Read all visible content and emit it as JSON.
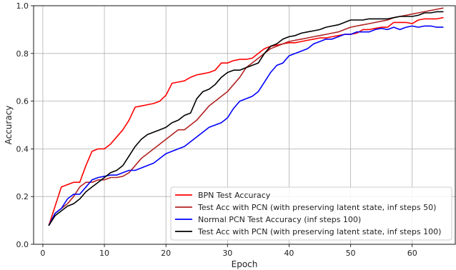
{
  "chart_data": {
    "type": "line",
    "xlabel": "Epoch",
    "ylabel": "Accuracy",
    "xlim": [
      -1.5,
      67
    ],
    "ylim": [
      0.0,
      1.0
    ],
    "xticks": [
      0,
      10,
      20,
      30,
      40,
      50,
      60
    ],
    "yticks": [
      0.0,
      0.2,
      0.4,
      0.6,
      0.8,
      1.0
    ],
    "xtick_labels": [
      "0",
      "10",
      "20",
      "30",
      "40",
      "50",
      "60"
    ],
    "ytick_labels": [
      "0.0",
      "0.2",
      "0.4",
      "0.6",
      "0.8",
      "1.0"
    ],
    "grid": true,
    "legend_position": "bottom-right",
    "series": [
      {
        "name": "BPN Test Accuracy",
        "color": "#ff0000",
        "x": [
          1,
          2,
          3,
          4,
          5,
          6,
          7,
          8,
          9,
          10,
          11,
          12,
          13,
          14,
          15,
          16,
          17,
          18,
          19,
          20,
          21,
          22,
          23,
          24,
          25,
          26,
          27,
          28,
          29,
          30,
          31,
          32,
          33,
          34,
          35,
          36,
          37,
          38,
          39,
          40,
          41,
          42,
          43,
          44,
          45,
          46,
          47,
          48,
          49,
          50,
          51,
          52,
          53,
          54,
          55,
          56,
          57,
          58,
          59,
          60,
          61,
          62,
          63,
          64,
          65
        ],
        "y": [
          0.08,
          0.16,
          0.24,
          0.25,
          0.26,
          0.26,
          0.33,
          0.39,
          0.4,
          0.4,
          0.42,
          0.45,
          0.48,
          0.52,
          0.575,
          0.58,
          0.585,
          0.59,
          0.6,
          0.625,
          0.675,
          0.68,
          0.685,
          0.7,
          0.71,
          0.715,
          0.72,
          0.73,
          0.76,
          0.76,
          0.77,
          0.775,
          0.775,
          0.78,
          0.8,
          0.82,
          0.83,
          0.835,
          0.84,
          0.845,
          0.845,
          0.85,
          0.855,
          0.86,
          0.865,
          0.865,
          0.87,
          0.875,
          0.88,
          0.88,
          0.885,
          0.9,
          0.9,
          0.905,
          0.91,
          0.91,
          0.93,
          0.93,
          0.93,
          0.925,
          0.94,
          0.945,
          0.945,
          0.945,
          0.95
        ]
      },
      {
        "name": "Test Acc with PCN (with preserving latent state, inf steps 50)",
        "color": "#b22222",
        "x": [
          1,
          2,
          3,
          4,
          5,
          6,
          7,
          8,
          9,
          10,
          11,
          12,
          13,
          14,
          15,
          16,
          17,
          18,
          19,
          20,
          21,
          22,
          23,
          24,
          25,
          26,
          27,
          28,
          29,
          30,
          31,
          32,
          33,
          34,
          35,
          36,
          37,
          38,
          39,
          40,
          41,
          42,
          43,
          44,
          45,
          46,
          47,
          48,
          49,
          50,
          51,
          52,
          53,
          54,
          55,
          56,
          57,
          58,
          59,
          60,
          61,
          62,
          63,
          64,
          65
        ],
        "y": [
          0.08,
          0.13,
          0.15,
          0.17,
          0.2,
          0.24,
          0.26,
          0.26,
          0.27,
          0.27,
          0.28,
          0.28,
          0.285,
          0.3,
          0.33,
          0.36,
          0.38,
          0.4,
          0.42,
          0.44,
          0.46,
          0.48,
          0.48,
          0.5,
          0.52,
          0.55,
          0.58,
          0.6,
          0.62,
          0.64,
          0.67,
          0.7,
          0.74,
          0.76,
          0.78,
          0.8,
          0.82,
          0.83,
          0.84,
          0.85,
          0.855,
          0.86,
          0.865,
          0.87,
          0.875,
          0.88,
          0.885,
          0.89,
          0.9,
          0.91,
          0.915,
          0.92,
          0.925,
          0.93,
          0.935,
          0.94,
          0.95,
          0.955,
          0.96,
          0.965,
          0.97,
          0.975,
          0.98,
          0.985,
          0.99
        ]
      },
      {
        "name": "Normal PCN Test Accuracy (inf steps 100)",
        "color": "#0000ff",
        "x": [
          1,
          2,
          3,
          4,
          5,
          6,
          7,
          8,
          9,
          10,
          11,
          12,
          13,
          14,
          15,
          16,
          17,
          18,
          19,
          20,
          21,
          22,
          23,
          24,
          25,
          26,
          27,
          28,
          29,
          30,
          31,
          32,
          33,
          34,
          35,
          36,
          37,
          38,
          39,
          40,
          41,
          42,
          43,
          44,
          45,
          46,
          47,
          48,
          49,
          50,
          51,
          52,
          53,
          54,
          55,
          56,
          57,
          58,
          59,
          60,
          61,
          62,
          63,
          64,
          65
        ],
        "y": [
          0.08,
          0.13,
          0.15,
          0.19,
          0.21,
          0.21,
          0.24,
          0.27,
          0.28,
          0.285,
          0.29,
          0.29,
          0.3,
          0.31,
          0.31,
          0.32,
          0.33,
          0.34,
          0.36,
          0.38,
          0.39,
          0.4,
          0.41,
          0.43,
          0.45,
          0.47,
          0.49,
          0.5,
          0.51,
          0.53,
          0.57,
          0.6,
          0.61,
          0.62,
          0.64,
          0.68,
          0.72,
          0.75,
          0.76,
          0.79,
          0.8,
          0.81,
          0.82,
          0.84,
          0.85,
          0.86,
          0.86,
          0.87,
          0.88,
          0.88,
          0.89,
          0.89,
          0.89,
          0.9,
          0.905,
          0.9,
          0.91,
          0.9,
          0.91,
          0.915,
          0.91,
          0.915,
          0.915,
          0.91,
          0.91
        ]
      },
      {
        "name": "Test Acc with PCN (with preserving latent state, inf steps 100)",
        "color": "#000000",
        "x": [
          1,
          2,
          3,
          4,
          5,
          6,
          7,
          8,
          9,
          10,
          11,
          12,
          13,
          14,
          15,
          16,
          17,
          18,
          19,
          20,
          21,
          22,
          23,
          24,
          25,
          26,
          27,
          28,
          29,
          30,
          31,
          32,
          33,
          34,
          35,
          36,
          37,
          38,
          39,
          40,
          41,
          42,
          43,
          44,
          45,
          46,
          47,
          48,
          49,
          50,
          51,
          52,
          53,
          54,
          55,
          56,
          57,
          58,
          59,
          60,
          61,
          62,
          63,
          64,
          65
        ],
        "y": [
          0.08,
          0.12,
          0.14,
          0.16,
          0.17,
          0.19,
          0.22,
          0.24,
          0.26,
          0.28,
          0.3,
          0.31,
          0.33,
          0.37,
          0.41,
          0.44,
          0.46,
          0.47,
          0.48,
          0.49,
          0.51,
          0.52,
          0.54,
          0.55,
          0.61,
          0.64,
          0.65,
          0.67,
          0.7,
          0.72,
          0.73,
          0.73,
          0.74,
          0.75,
          0.76,
          0.8,
          0.83,
          0.84,
          0.86,
          0.87,
          0.875,
          0.885,
          0.89,
          0.895,
          0.9,
          0.91,
          0.915,
          0.92,
          0.93,
          0.94,
          0.94,
          0.94,
          0.945,
          0.945,
          0.945,
          0.945,
          0.95,
          0.955,
          0.955,
          0.955,
          0.96,
          0.97,
          0.97,
          0.975,
          0.975
        ]
      }
    ]
  }
}
